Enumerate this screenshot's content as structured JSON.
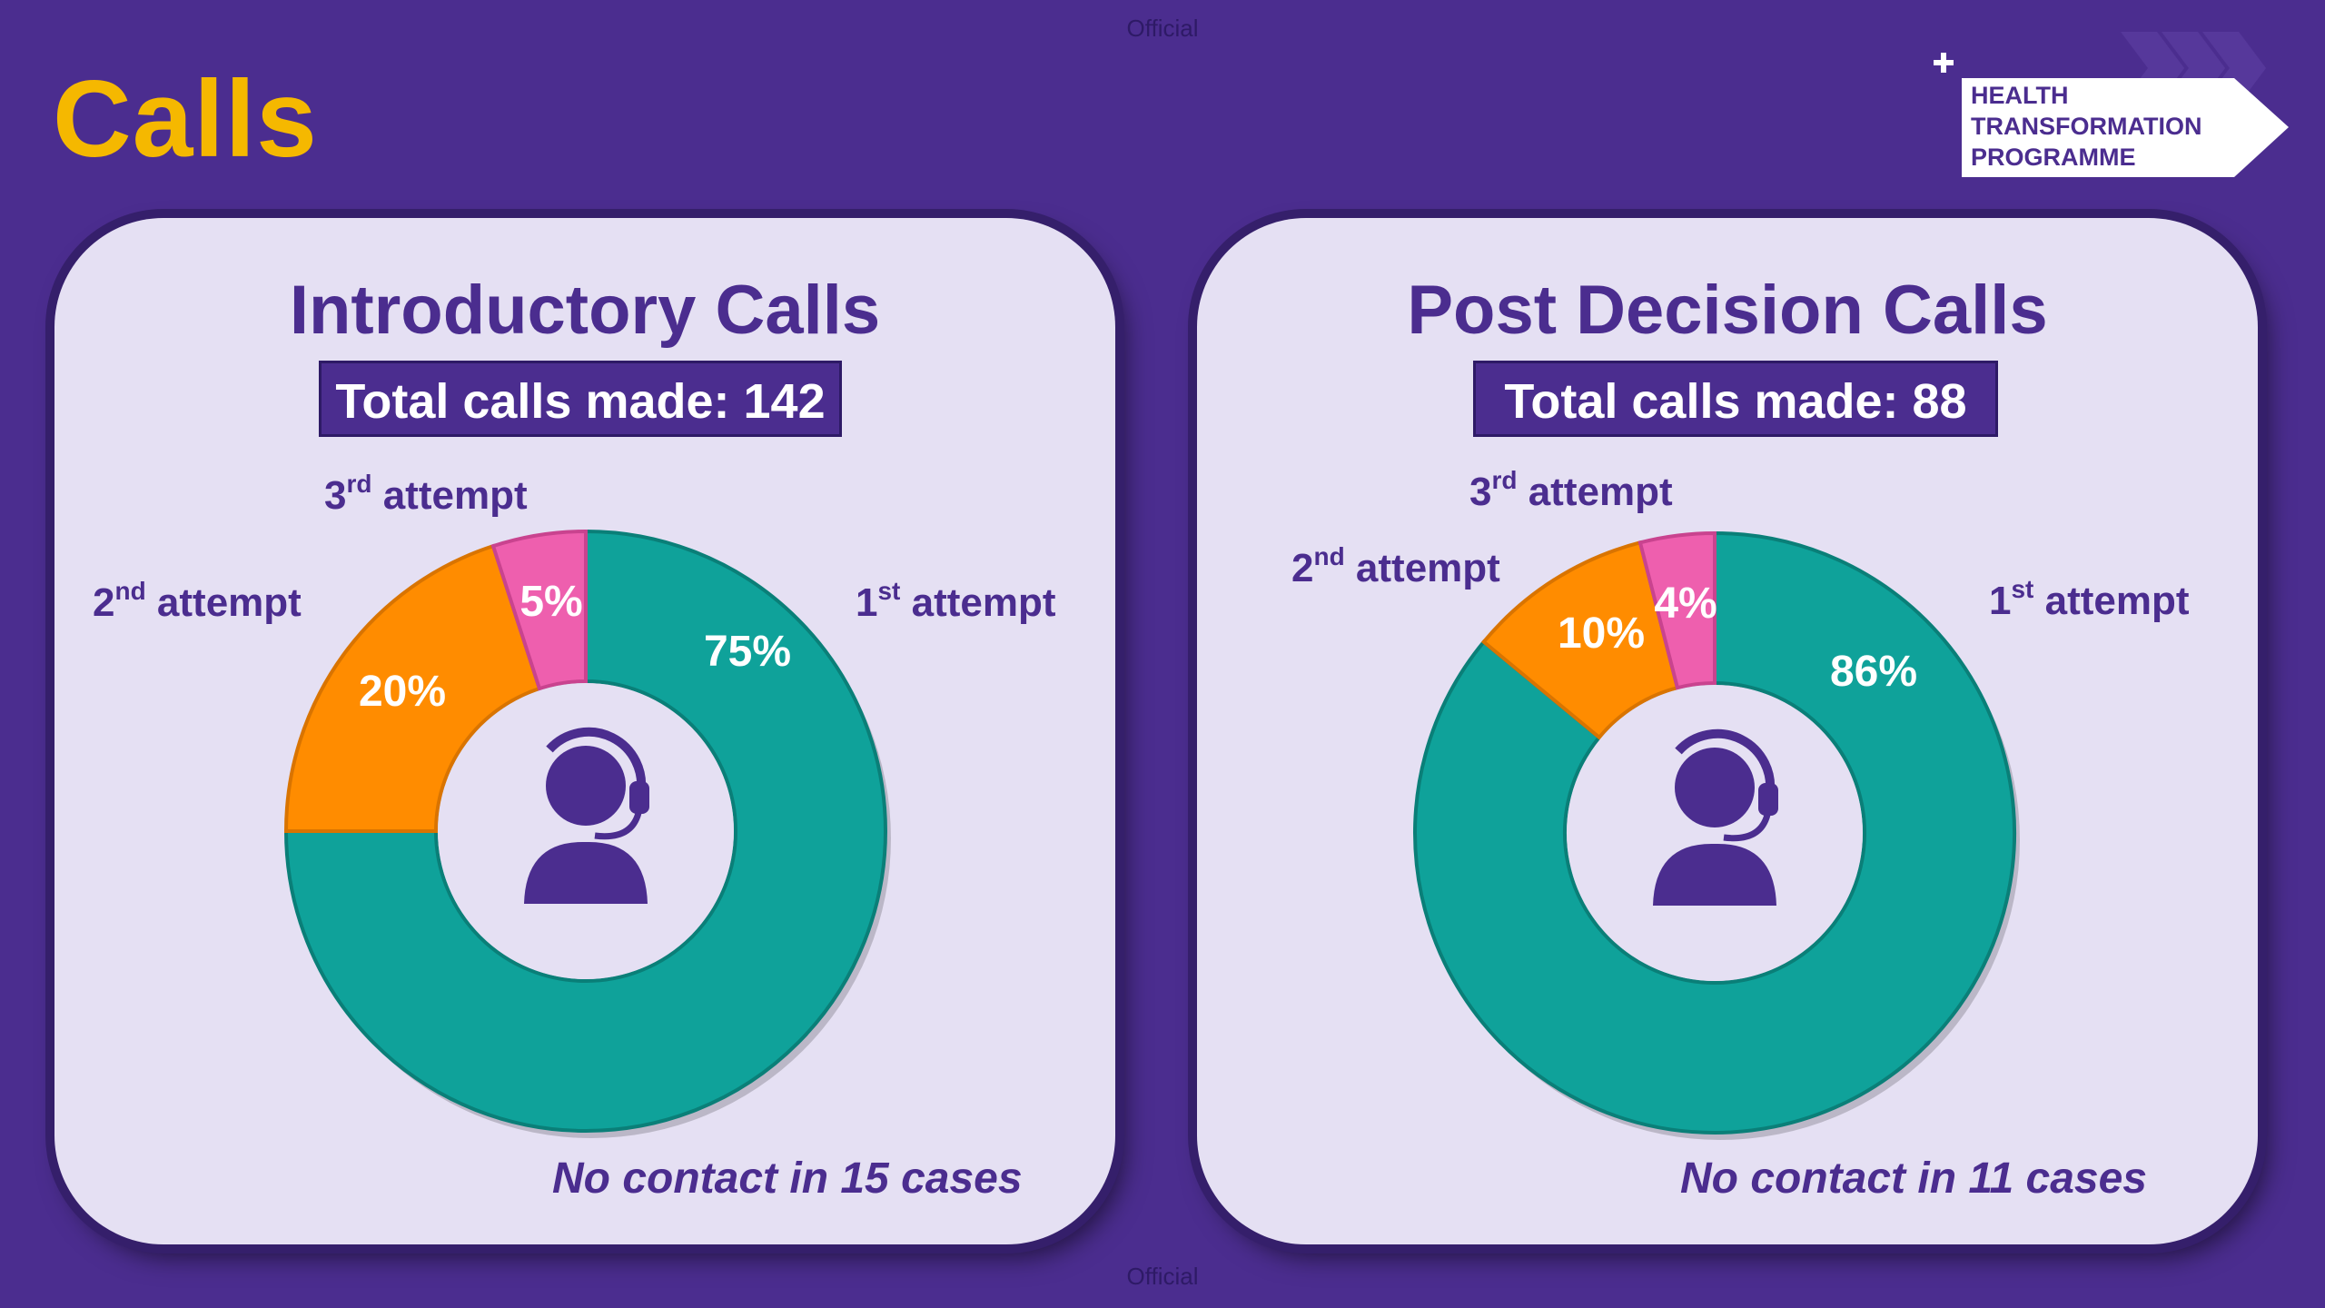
{
  "header": {
    "official_top": "Official",
    "official_bottom": "Official",
    "title": "Calls"
  },
  "logo": {
    "line1": "HEALTH",
    "line2": "TRANSFORMATION",
    "line3": "PROGRAMME"
  },
  "colors": {
    "first": "#0fa29a",
    "second": "#ff8c00",
    "third": "#ee5fae",
    "text": "#4b2d8f"
  },
  "chart_data": [
    {
      "type": "pie",
      "title": "Introductory Calls",
      "total_label": "Total calls made: 142",
      "footnote": "No contact in 15 cases",
      "categories": [
        "1st attempt",
        "2nd attempt",
        "3rd attempt"
      ],
      "values": [
        75,
        20,
        5
      ],
      "value_labels": [
        "75%",
        "20%",
        "5%"
      ],
      "center_icon": "headset-operator-icon"
    },
    {
      "type": "pie",
      "title": "Post Decision Calls",
      "total_label": "Total calls made: 88",
      "footnote": "No contact in 11 cases",
      "categories": [
        "1st attempt",
        "2nd attempt",
        "3rd attempt"
      ],
      "values": [
        86,
        10,
        4
      ],
      "value_labels": [
        "86%",
        "10%",
        "4%"
      ],
      "center_icon": "headset-operator-icon"
    }
  ]
}
